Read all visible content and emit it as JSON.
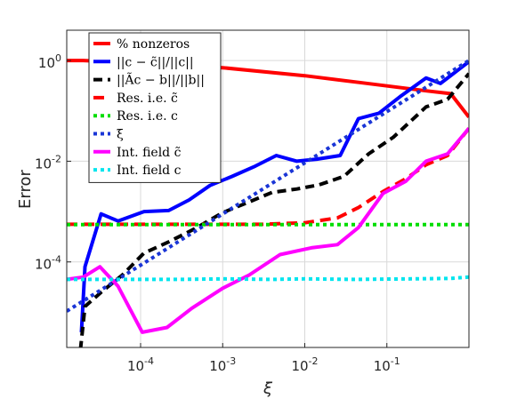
{
  "chart_data": {
    "type": "line",
    "xlabel": "ξ",
    "ylabel": "Error",
    "xscale": "log",
    "yscale": "log",
    "xlim": [
      1.26e-05,
      1.0
    ],
    "ylim": [
      2e-06,
      4
    ],
    "grid": true,
    "legend_position": "top-left",
    "x_ticks": [
      {
        "value": 0.0001,
        "base": "10",
        "exp": "-4"
      },
      {
        "value": 0.001,
        "base": "10",
        "exp": "-3"
      },
      {
        "value": 0.01,
        "base": "10",
        "exp": "-2"
      },
      {
        "value": 0.1,
        "base": "10",
        "exp": "-1"
      }
    ],
    "y_ticks": [
      {
        "value": 0.0001,
        "base": "10",
        "exp": "-4"
      },
      {
        "value": 0.01,
        "base": "10",
        "exp": "-2"
      },
      {
        "value": 1,
        "base": "10",
        "exp": "0"
      }
    ],
    "series": [
      {
        "name": "% nonzeros",
        "color": "#ff0000",
        "dash": "",
        "points": [
          [
            1.26e-05,
            1.0
          ],
          [
            2e-05,
            1.0
          ],
          [
            0.0001,
            0.9
          ],
          [
            0.001,
            0.72
          ],
          [
            0.01,
            0.5
          ],
          [
            0.05,
            0.36
          ],
          [
            0.3,
            0.25
          ],
          [
            0.6,
            0.22
          ],
          [
            1.0,
            0.075
          ]
        ]
      },
      {
        "name": "||c − c̃||/||c||",
        "color": "#0000ff",
        "dash": "",
        "points": [
          [
            1.9e-05,
            4e-06
          ],
          [
            2.1e-05,
            8e-05
          ],
          [
            3.3e-05,
            0.0009
          ],
          [
            5.3e-05,
            0.00065
          ],
          [
            0.00011,
            0.001
          ],
          [
            0.00022,
            0.00105
          ],
          [
            0.00039,
            0.0017
          ],
          [
            0.0007,
            0.0033
          ],
          [
            0.0013,
            0.005
          ],
          [
            0.0025,
            0.008
          ],
          [
            0.0045,
            0.013
          ],
          [
            0.008,
            0.01
          ],
          [
            0.014,
            0.011
          ],
          [
            0.027,
            0.013
          ],
          [
            0.045,
            0.07
          ],
          [
            0.08,
            0.09
          ],
          [
            0.15,
            0.2
          ],
          [
            0.3,
            0.45
          ],
          [
            0.45,
            0.35
          ],
          [
            1.0,
            0.95
          ]
        ]
      },
      {
        "name": "||Ãc − b||/||b||",
        "color": "#000000",
        "dash": "10,6",
        "points": [
          [
            1.85e-05,
            1.8e-06
          ],
          [
            2.1e-05,
            1.3e-05
          ],
          [
            3.3e-05,
            2.5e-05
          ],
          [
            6e-05,
            5.5e-05
          ],
          [
            0.00011,
            0.00015
          ],
          [
            0.00022,
            0.00025
          ],
          [
            0.00045,
            0.00045
          ],
          [
            0.001,
            0.00095
          ],
          [
            0.0022,
            0.0016
          ],
          [
            0.004,
            0.0024
          ],
          [
            0.008,
            0.0028
          ],
          [
            0.015,
            0.0034
          ],
          [
            0.03,
            0.005
          ],
          [
            0.06,
            0.014
          ],
          [
            0.12,
            0.03
          ],
          [
            0.3,
            0.12
          ],
          [
            0.55,
            0.17
          ],
          [
            1.0,
            0.55
          ]
        ]
      },
      {
        "name": "Res. i.e. c̃",
        "color": "#ff0000",
        "dash": "12,7",
        "points": [
          [
            1.26e-05,
            0.00056
          ],
          [
            0.003,
            0.00056
          ],
          [
            0.01,
            0.0006
          ],
          [
            0.025,
            0.00075
          ],
          [
            0.045,
            0.0012
          ],
          [
            0.09,
            0.0025
          ],
          [
            0.17,
            0.0045
          ],
          [
            0.3,
            0.0085
          ],
          [
            0.55,
            0.013
          ],
          [
            1.0,
            0.045
          ]
        ]
      },
      {
        "name": "Res. i.e. c",
        "color": "#00dd00",
        "dash": "4,4",
        "points": [
          [
            1.26e-05,
            0.00055
          ],
          [
            1.0,
            0.00055
          ]
        ]
      },
      {
        "name": "ξ",
        "color": "#1a35d6",
        "dash": "4,4",
        "points": [
          [
            1.26e-05,
            1.05e-05
          ],
          [
            1.0,
            1.0
          ]
        ]
      },
      {
        "name": "Int. field c̃",
        "color": "#ff00ff",
        "dash": "",
        "points": [
          [
            1.26e-05,
            4.5e-05
          ],
          [
            2e-05,
            5e-05
          ],
          [
            3.2e-05,
            8e-05
          ],
          [
            5.3e-05,
            3.3e-05
          ],
          [
            0.000105,
            4e-06
          ],
          [
            0.00021,
            5e-06
          ],
          [
            0.00042,
            1.2e-05
          ],
          [
            0.001,
            3e-05
          ],
          [
            0.0021,
            5.5e-05
          ],
          [
            0.005,
            0.00014
          ],
          [
            0.012,
            0.00019
          ],
          [
            0.025,
            0.00022
          ],
          [
            0.045,
            0.00048
          ],
          [
            0.09,
            0.0023
          ],
          [
            0.17,
            0.004
          ],
          [
            0.3,
            0.01
          ],
          [
            0.55,
            0.014
          ],
          [
            1.0,
            0.045
          ]
        ]
      },
      {
        "name": "Int. field c",
        "color": "#00e5ee",
        "dash": "4,4",
        "points": [
          [
            1.26e-05,
            4.5e-05
          ],
          [
            0.0003,
            4.5e-05
          ],
          [
            0.001,
            4.6e-05
          ],
          [
            0.004,
            4.5e-05
          ],
          [
            0.01,
            4.6e-05
          ],
          [
            0.04,
            4.5e-05
          ],
          [
            0.2,
            4.6e-05
          ],
          [
            0.6,
            4.7e-05
          ],
          [
            1.0,
            5e-05
          ]
        ]
      }
    ],
    "legend_labels": [
      {
        "text": "% nonzeros"
      },
      {
        "text": "||c − c̃||/||c||"
      },
      {
        "text": "||Ãc − b||/||b||"
      },
      {
        "text": "Res. i.e. c̃"
      },
      {
        "text": "Res. i.e. c"
      },
      {
        "text": "ξ"
      },
      {
        "text": "Int. field c̃"
      },
      {
        "text": "Int. field c"
      }
    ]
  }
}
